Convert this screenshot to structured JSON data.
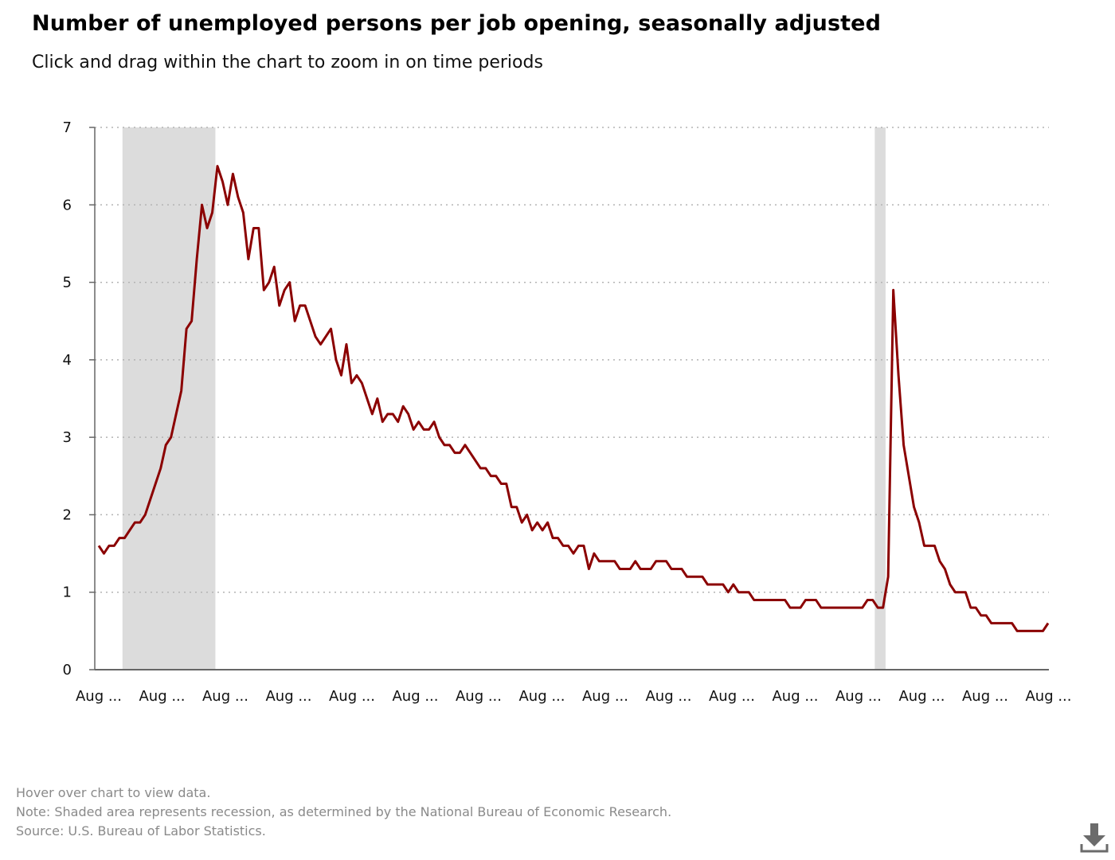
{
  "title": "Number of unemployed persons per job opening, seasonally adjusted",
  "subtitle": "Click and drag within the chart to zoom in on time periods",
  "notes": {
    "hover": "Hover over chart to view data.",
    "note": "Note: Shaded area represents recession, as determined by the National Bureau of Economic Research.",
    "source": "Source: U.S. Bureau of Labor Statistics."
  },
  "download_icon": "download-icon",
  "colors": {
    "line": "#8b0000",
    "recession": "#dcdcdc",
    "grid": "#b3b3b3",
    "axis": "#666666"
  },
  "chart_data": {
    "type": "line",
    "title": "Number of unemployed persons per job opening, seasonally adjusted",
    "xlabel": "",
    "ylabel": "",
    "ylim": [
      0,
      7
    ],
    "y_ticks": [
      "0",
      "1",
      "2",
      "3",
      "4",
      "5",
      "6",
      "7"
    ],
    "x_tick_labels": [
      "Aug ...",
      "Aug ...",
      "Aug ...",
      "Aug ...",
      "Aug ...",
      "Aug ...",
      "Aug ...",
      "Aug ...",
      "Aug ...",
      "Aug ...",
      "Aug ...",
      "Aug ...",
      "Aug ...",
      "Aug ...",
      "Aug ...",
      "Aug ..."
    ],
    "grid": "horizontal dotted",
    "legend": "none",
    "recessions": [
      {
        "start": 4.6,
        "end": 22.6
      },
      {
        "start": 150.4,
        "end": 152.5
      }
    ],
    "series": [
      {
        "values": [
          1.6,
          1.5,
          1.6,
          1.6,
          1.7,
          1.7,
          1.8,
          1.9,
          1.9,
          2.0,
          2.2,
          2.4,
          2.6,
          2.9,
          3.0,
          3.3,
          3.6,
          4.4,
          4.5,
          5.3,
          6.0,
          5.7,
          5.9,
          6.5,
          6.3,
          6.0,
          6.4,
          6.1,
          5.9,
          5.3,
          5.7,
          5.7,
          4.9,
          5.0,
          5.2,
          4.7,
          4.9,
          5.0,
          4.5,
          4.7,
          4.7,
          4.5,
          4.3,
          4.2,
          4.3,
          4.4,
          4.0,
          3.8,
          4.2,
          3.7,
          3.8,
          3.7,
          3.5,
          3.3,
          3.5,
          3.2,
          3.3,
          3.3,
          3.2,
          3.4,
          3.3,
          3.1,
          3.2,
          3.1,
          3.1,
          3.2,
          3.0,
          2.9,
          2.9,
          2.8,
          2.8,
          2.9,
          2.8,
          2.7,
          2.6,
          2.6,
          2.5,
          2.5,
          2.4,
          2.4,
          2.1,
          2.1,
          1.9,
          2.0,
          1.8,
          1.9,
          1.8,
          1.9,
          1.7,
          1.7,
          1.6,
          1.6,
          1.5,
          1.6,
          1.6,
          1.3,
          1.5,
          1.4,
          1.4,
          1.4,
          1.4,
          1.3,
          1.3,
          1.3,
          1.4,
          1.3,
          1.3,
          1.3,
          1.4,
          1.4,
          1.4,
          1.3,
          1.3,
          1.3,
          1.2,
          1.2,
          1.2,
          1.2,
          1.1,
          1.1,
          1.1,
          1.1,
          1.0,
          1.1,
          1.0,
          1.0,
          1.0,
          0.9,
          0.9,
          0.9,
          0.9,
          0.9,
          0.9,
          0.9,
          0.8,
          0.8,
          0.8,
          0.9,
          0.9,
          0.9,
          0.8,
          0.8,
          0.8,
          0.8,
          0.8,
          0.8,
          0.8,
          0.8,
          0.8,
          0.9,
          0.9,
          0.8,
          0.8,
          1.2,
          4.9,
          3.8,
          2.9,
          2.5,
          2.1,
          1.9,
          1.6,
          1.6,
          1.6,
          1.4,
          1.3,
          1.1,
          1.0,
          1.0,
          1.0,
          0.8,
          0.8,
          0.7,
          0.7,
          0.6,
          0.6,
          0.6,
          0.6,
          0.6,
          0.5,
          0.5,
          0.5,
          0.5,
          0.5,
          0.5,
          0.6
        ]
      }
    ]
  }
}
